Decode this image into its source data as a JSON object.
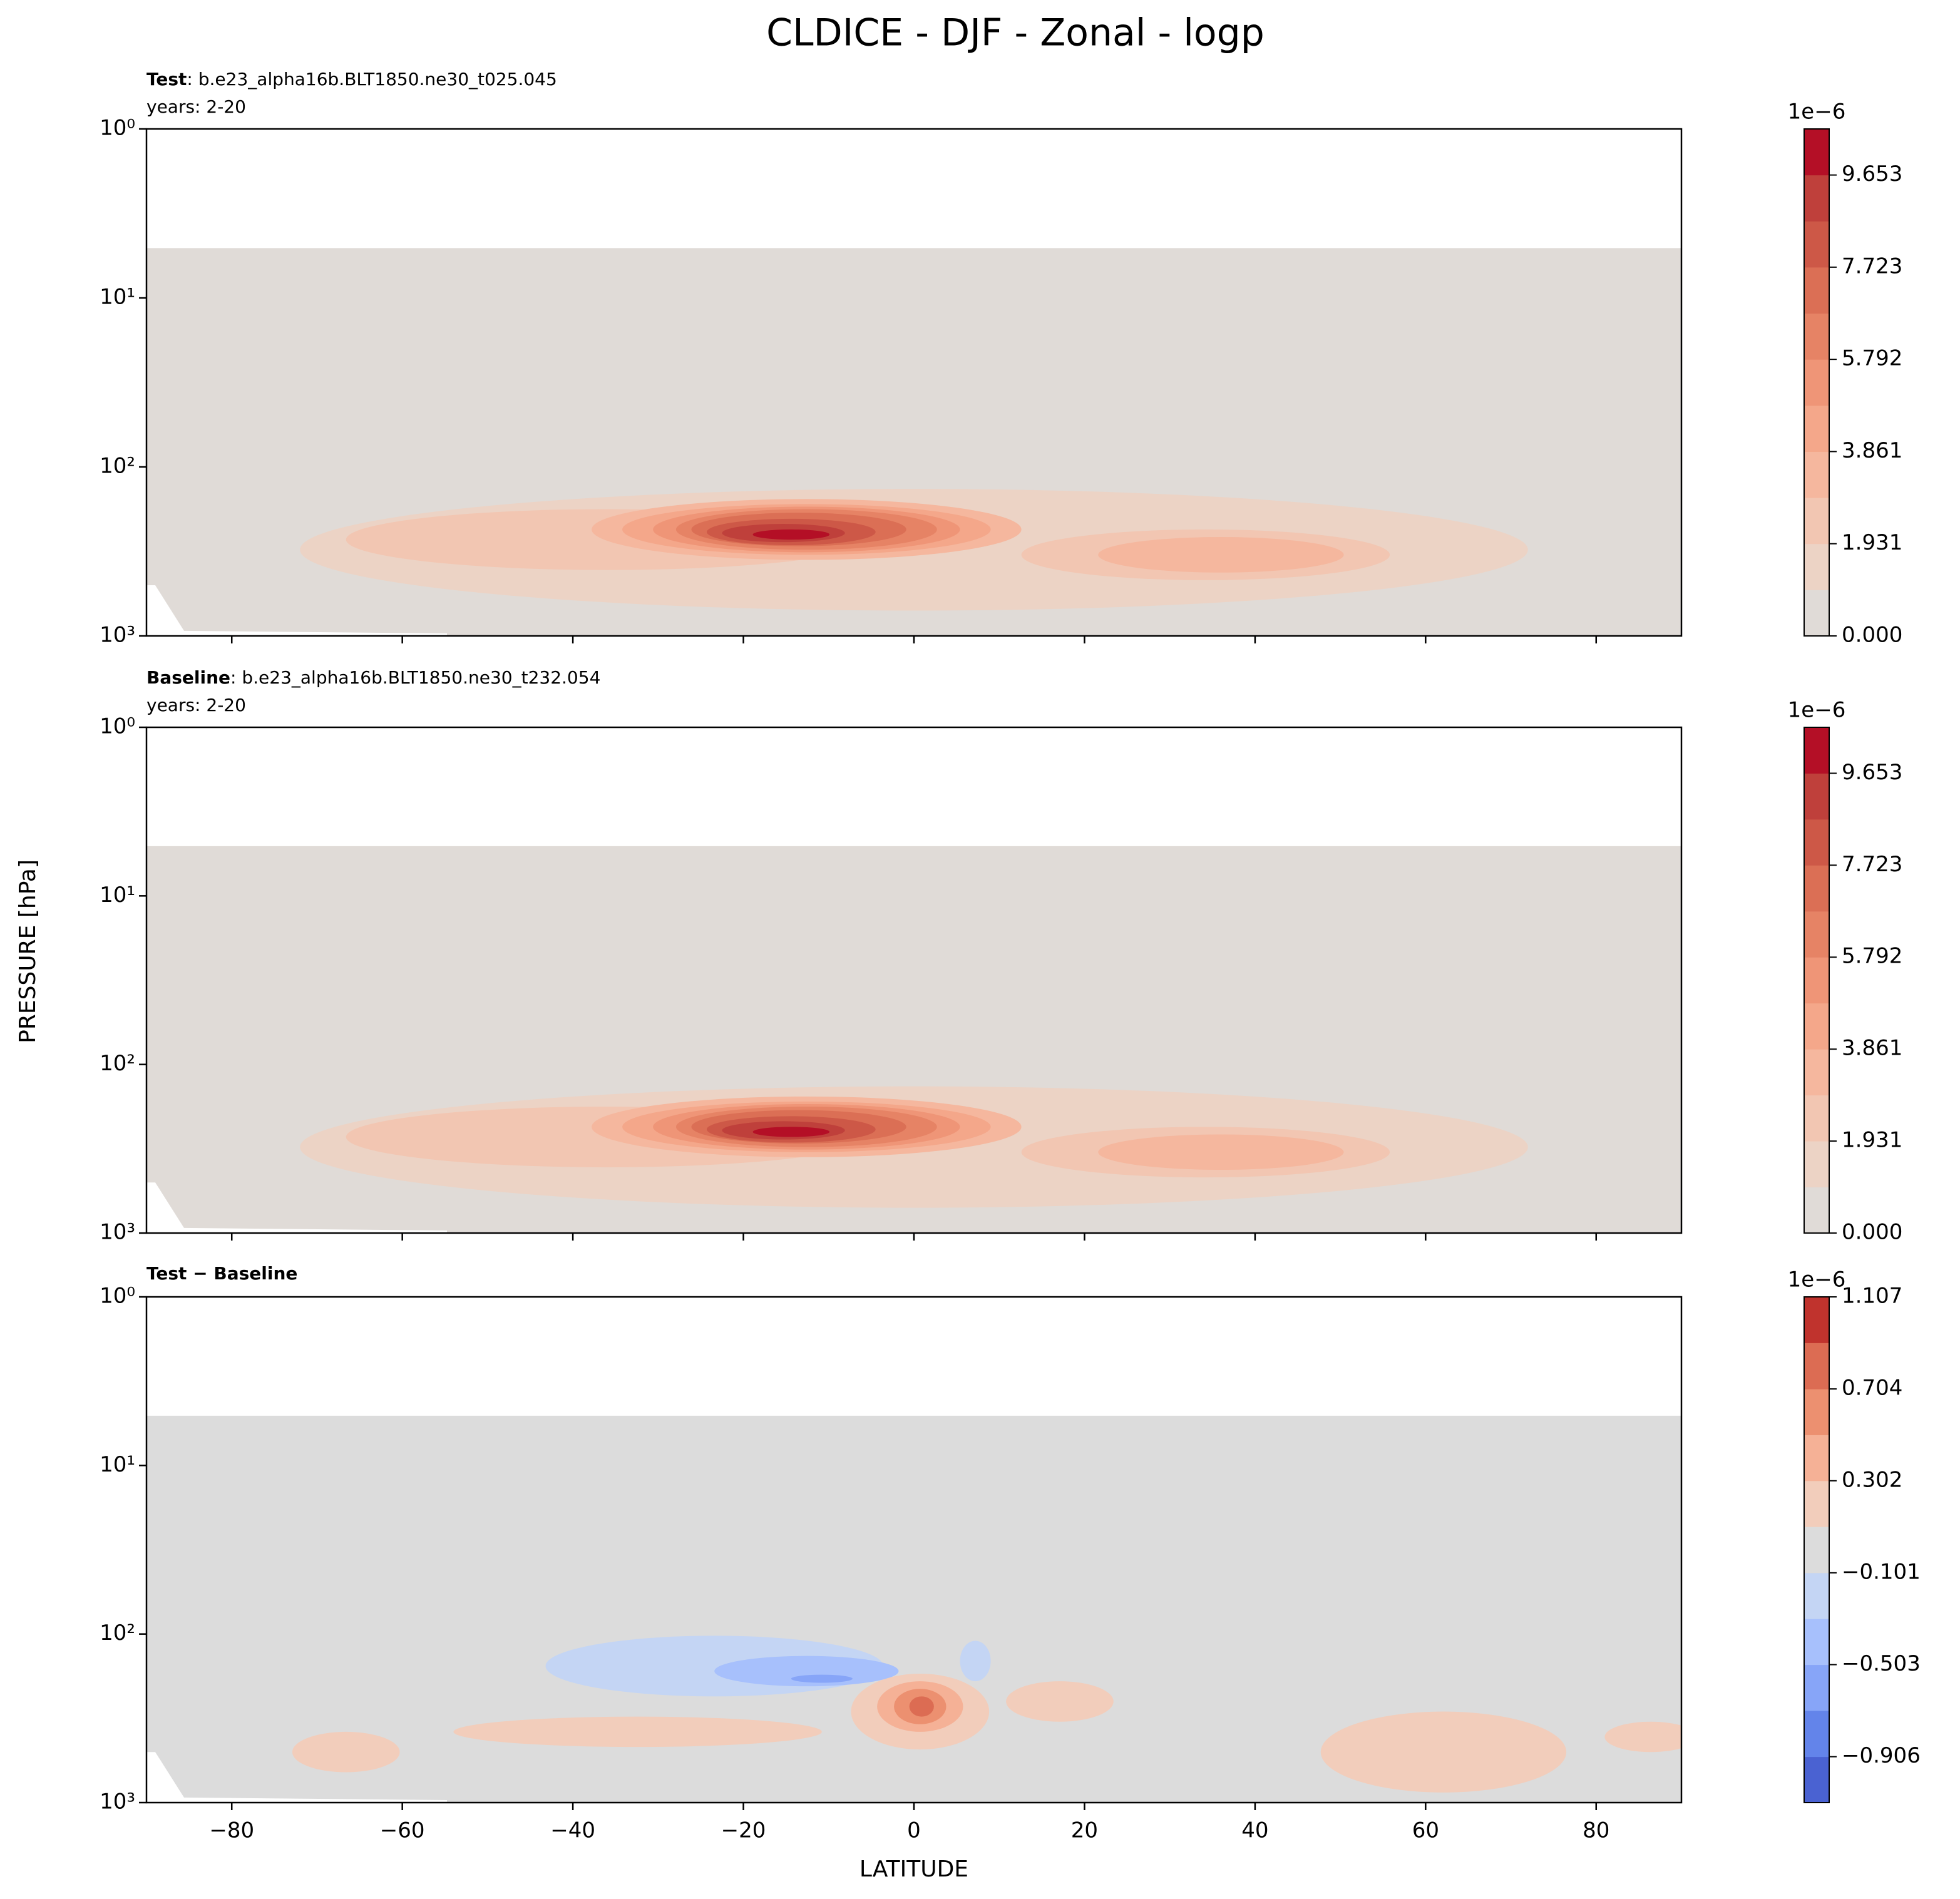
{
  "title": "CLDICE - DJF - Zonal - logp",
  "x_label": "LATITUDE",
  "y_label": "PRESSURE [hPa]",
  "chart_data": [
    {
      "type": "contour",
      "title_bold": "Test",
      "title": ": b.e23_alpha16b.BLT1850.ne30_t025.045",
      "subtitle": "years: 2-20",
      "xlim": [
        -90,
        90
      ],
      "xticks": [
        -80,
        -60,
        -40,
        -20,
        0,
        20,
        40,
        60,
        80
      ],
      "xticklabels": false,
      "ylim": [
        1000,
        1
      ],
      "yscale": "log",
      "yticks": [
        {
          "value": 1,
          "label": "10⁰"
        },
        {
          "value": 10,
          "label": "10¹"
        },
        {
          "value": 100,
          "label": "10²"
        },
        {
          "value": 1000,
          "label": "10³"
        }
      ],
      "levels": [
        0,
        0.9653,
        1.931,
        2.896,
        3.861,
        4.827,
        5.792,
        6.757,
        7.723,
        8.688,
        9.653,
        10.618
      ],
      "colors": [
        "#e0dbd7",
        "#ecd3c5",
        "#f2c6b2",
        "#f5b79e",
        "#f4a78a",
        "#ef9577",
        "#e68365",
        "#db6f55",
        "#cd5847",
        "#bf403b",
        "#b40f26"
      ],
      "colorbar_offset": "1e−6",
      "colorbar_ticks": [
        {
          "value": 0,
          "label": "0.000"
        },
        1.931,
        3.861,
        5.792,
        7.723,
        9.653
      ]
    },
    {
      "type": "contour",
      "title_bold": "Baseline",
      "title": ": b.e23_alpha16b.BLT1850.ne30_t232.054",
      "subtitle": "years: 2-20",
      "xlim": [
        -90,
        90
      ],
      "xticks": [
        -80,
        -60,
        -40,
        -20,
        0,
        20,
        40,
        60,
        80
      ],
      "xticklabels": false,
      "ylim": [
        1000,
        1
      ],
      "yscale": "log",
      "yticks": [
        {
          "value": 1,
          "label": "10⁰"
        },
        {
          "value": 10,
          "label": "10¹"
        },
        {
          "value": 100,
          "label": "10²"
        },
        {
          "value": 1000,
          "label": "10³"
        }
      ],
      "levels": [
        0,
        0.9653,
        1.931,
        2.896,
        3.861,
        4.827,
        5.792,
        6.757,
        7.723,
        8.688,
        9.653,
        10.618
      ],
      "colors": [
        "#e0dbd7",
        "#ecd3c5",
        "#f2c6b2",
        "#f5b79e",
        "#f4a78a",
        "#ef9577",
        "#e68365",
        "#db6f55",
        "#cd5847",
        "#bf403b",
        "#b40f26"
      ],
      "colorbar_offset": "1e−6",
      "colorbar_ticks": [
        {
          "value": 0,
          "label": "0.000"
        },
        1.931,
        3.861,
        5.792,
        7.723,
        9.653
      ]
    },
    {
      "type": "contour",
      "title_bold": "Test − Baseline",
      "xlim": [
        -90,
        90
      ],
      "xticks": [
        {
          "value": -80,
          "label": "−80"
        },
        {
          "value": -60,
          "label": "−60"
        },
        {
          "value": -40,
          "label": "−40"
        },
        {
          "value": -20,
          "label": "−20"
        },
        0,
        20,
        40,
        60,
        80
      ],
      "xticklabels": true,
      "ylim": [
        1000,
        1
      ],
      "yscale": "log",
      "yticks": [
        {
          "value": 1,
          "label": "10⁰"
        },
        {
          "value": 10,
          "label": "10¹"
        },
        {
          "value": 100,
          "label": "10²"
        },
        {
          "value": 1000,
          "label": "10³"
        }
      ],
      "levels": [
        -1.107,
        -0.906,
        -0.704,
        -0.503,
        -0.302,
        -0.101,
        0.101,
        0.302,
        0.503,
        0.704,
        0.906,
        1.107
      ],
      "colors": [
        "#4a62d2",
        "#6384ea",
        "#87a5f8",
        "#a7c0fc",
        "#c4d5f4",
        "#dcdcdc",
        "#f2cdbb",
        "#f5b196",
        "#ec9070",
        "#dc6c53",
        "#c0332d"
      ],
      "colorbar_offset": "1e−6",
      "colorbar_ticks": [
        {
          "value": -0.906,
          "label": "−0.906"
        },
        {
          "value": -0.503,
          "label": "−0.503"
        },
        {
          "value": -0.101,
          "label": "−0.101"
        },
        0.302,
        0.704,
        1.107
      ]
    }
  ]
}
